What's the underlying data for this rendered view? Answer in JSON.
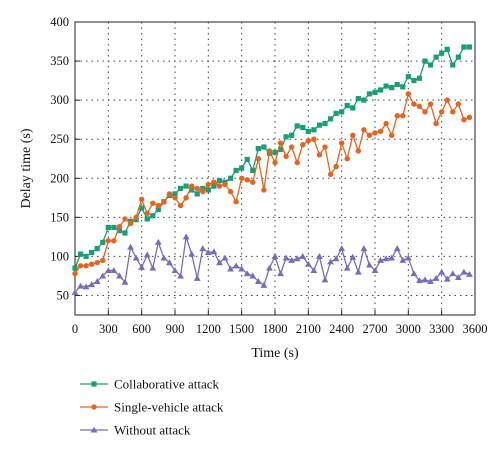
{
  "chart_data": {
    "type": "line",
    "xlabel": "Time (s)",
    "ylabel": "Delay time (s)",
    "xlim": [
      0,
      3600
    ],
    "ylim": [
      25,
      400
    ],
    "xticks": [
      0,
      300,
      600,
      900,
      1200,
      1500,
      1800,
      2100,
      2400,
      2700,
      3000,
      3300,
      3600
    ],
    "yticks": [
      50,
      100,
      150,
      200,
      250,
      300,
      350,
      400
    ],
    "grid": true,
    "legend_position": "below",
    "x": [
      0,
      50,
      100,
      150,
      200,
      250,
      300,
      350,
      400,
      450,
      500,
      550,
      600,
      650,
      700,
      750,
      800,
      850,
      900,
      950,
      1000,
      1050,
      1100,
      1150,
      1200,
      1250,
      1300,
      1350,
      1400,
      1450,
      1500,
      1550,
      1600,
      1650,
      1700,
      1750,
      1800,
      1850,
      1900,
      1950,
      2000,
      2050,
      2100,
      2150,
      2200,
      2250,
      2300,
      2350,
      2400,
      2450,
      2500,
      2550,
      2600,
      2650,
      2700,
      2750,
      2800,
      2850,
      2900,
      2950,
      3000,
      3050,
      3100,
      3150,
      3200,
      3250,
      3300,
      3350,
      3400,
      3450,
      3500,
      3550
    ],
    "series": [
      {
        "name": "Collaborative attack",
        "color": "#1a9e77",
        "marker": "square",
        "values": [
          85,
          103,
          100,
          105,
          110,
          118,
          137,
          137,
          133,
          130,
          145,
          147,
          162,
          148,
          152,
          160,
          170,
          178,
          180,
          187,
          190,
          185,
          180,
          187,
          185,
          190,
          197,
          195,
          200,
          210,
          213,
          224,
          210,
          238,
          240,
          232,
          233,
          237,
          253,
          255,
          267,
          265,
          260,
          262,
          268,
          270,
          276,
          283,
          285,
          293,
          290,
          302,
          300,
          308,
          310,
          313,
          318,
          316,
          320,
          317,
          330,
          325,
          328,
          350,
          345,
          355,
          360,
          365,
          345,
          355,
          368,
          368
        ]
      },
      {
        "name": "Single-vehicle attack",
        "color": "#e8641e",
        "marker": "circle",
        "values": [
          78,
          88,
          88,
          90,
          92,
          95,
          120,
          120,
          138,
          148,
          142,
          150,
          173,
          155,
          168,
          165,
          170,
          180,
          175,
          165,
          175,
          190,
          187,
          183,
          192,
          195,
          190,
          192,
          183,
          170,
          200,
          198,
          195,
          225,
          185,
          235,
          220,
          245,
          228,
          240,
          220,
          243,
          248,
          250,
          230,
          240,
          205,
          215,
          245,
          225,
          255,
          235,
          262,
          255,
          258,
          260,
          270,
          255,
          280,
          280,
          308,
          295,
          292,
          285,
          295,
          270,
          285,
          300,
          285,
          295,
          275,
          278
        ]
      },
      {
        "name": "Without attack",
        "color": "#7a6bbf",
        "marker": "triangle",
        "values": [
          54,
          62,
          61,
          64,
          68,
          75,
          82,
          82,
          75,
          67,
          112,
          98,
          86,
          102,
          85,
          118,
          98,
          92,
          82,
          75,
          125,
          103,
          72,
          110,
          105,
          106,
          92,
          98,
          84,
          88,
          84,
          78,
          75,
          68,
          63,
          85,
          100,
          78,
          98,
          95,
          97,
          100,
          90,
          82,
          100,
          70,
          93,
          97,
          110,
          85,
          99,
          80,
          110,
          89,
          82,
          95,
          97,
          98,
          110,
          95,
          98,
          78,
          69,
          70,
          68,
          72,
          80,
          71,
          78,
          73,
          80,
          77
        ]
      }
    ]
  }
}
